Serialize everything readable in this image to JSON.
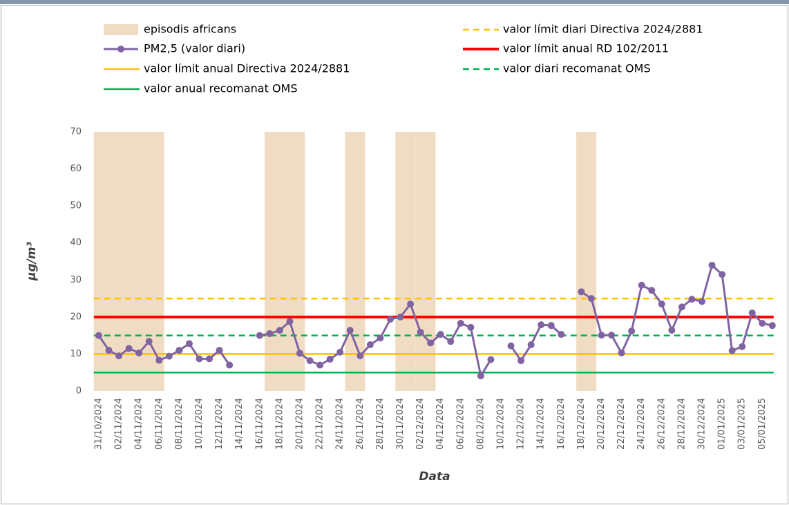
{
  "chart_data": {
    "type": "line",
    "y_label": "µg/m³",
    "x_label": "Data",
    "categories": [
      "31/10/2024",
      null,
      "02/11/2024",
      null,
      "04/11/2024",
      null,
      "06/11/2024",
      null,
      "08/11/2024",
      null,
      "10/11/2024",
      null,
      "12/11/2024",
      null,
      "14/11/2024",
      null,
      "16/11/2024",
      null,
      "18/11/2024",
      null,
      "20/11/2024",
      null,
      "22/11/2024",
      null,
      "24/11/2024",
      null,
      "26/11/2024",
      null,
      "28/11/2024",
      null,
      "30/11/2024",
      null,
      "02/12/2024",
      null,
      "04/12/2024",
      null,
      "06/12/2024",
      null,
      "08/12/2024",
      null,
      "10/12/2024",
      null,
      "12/12/2024",
      null,
      "14/12/2024",
      null,
      "16/12/2024",
      null,
      "18/12/2024",
      null,
      "20/12/2024",
      null,
      "22/12/2024",
      null,
      "24/12/2024",
      null,
      "26/12/2024",
      null,
      "28/12/2024",
      null,
      "30/12/2024",
      null,
      "01/01/2025",
      null,
      "03/01/2025",
      null,
      "05/01/2025",
      null
    ],
    "series": [
      {
        "name": "episodis africans",
        "type": "bar",
        "color": "#f0dcc2",
        "values": [
          70,
          70,
          70,
          70,
          70,
          70,
          70,
          null,
          null,
          null,
          null,
          null,
          null,
          null,
          null,
          null,
          null,
          70,
          70,
          70,
          70,
          null,
          null,
          null,
          null,
          70,
          70,
          null,
          null,
          null,
          70,
          70,
          70,
          70,
          null,
          null,
          null,
          null,
          null,
          null,
          null,
          null,
          null,
          null,
          null,
          null,
          null,
          null,
          70,
          70,
          null,
          null,
          null,
          null,
          null,
          null,
          null,
          null,
          null,
          null,
          null,
          null,
          null,
          null,
          null,
          null,
          null,
          null
        ]
      },
      {
        "name": "PM2,5 (valor diari)",
        "type": "line",
        "color": "#8064a2",
        "values": [
          15,
          11,
          9.5,
          11.5,
          10.3,
          13.4,
          8.3,
          9.4,
          11,
          12.8,
          8.7,
          8.7,
          11,
          7,
          null,
          null,
          15,
          15.5,
          16.4,
          18.8,
          10.2,
          8.2,
          7,
          8.6,
          10.5,
          16.4,
          9.5,
          12.5,
          14.3,
          19.4,
          20,
          23.5,
          15.9,
          13,
          15.3,
          13.4,
          18.3,
          17.2,
          4.1,
          8.5,
          null,
          12.2,
          8.2,
          12.5,
          17.9,
          17.7,
          15.3,
          null,
          26.8,
          25,
          15.1,
          15.1,
          10.3,
          16.2,
          28.6,
          27.2,
          23.5,
          16.4,
          22.7,
          24.8,
          24.2,
          34,
          31.5,
          10.9,
          12,
          21.1,
          18.3,
          17.7
        ]
      }
    ],
    "reference_lines": [
      {
        "name": "valor límit diari Directiva 2024/2881",
        "value": 25,
        "color": "#ffc000",
        "dashed": true
      },
      {
        "name": "valor límit anual RD 102/2011",
        "value": 20,
        "color": "#ff0000",
        "dashed": false
      },
      {
        "name": "valor límit anual Directiva 2024/2881",
        "value": 10,
        "color": "#ffc000",
        "dashed": false
      },
      {
        "name": "valor diari recomanat OMS",
        "value": 15,
        "color": "#00b050",
        "dashed": true
      },
      {
        "name": "valor anual recomanat OMS",
        "value": 5,
        "color": "#00b050",
        "dashed": false
      }
    ],
    "ylim": [
      0,
      70
    ],
    "yticks": [
      0,
      10,
      20,
      30,
      40,
      50,
      60,
      70
    ],
    "grid": false
  }
}
